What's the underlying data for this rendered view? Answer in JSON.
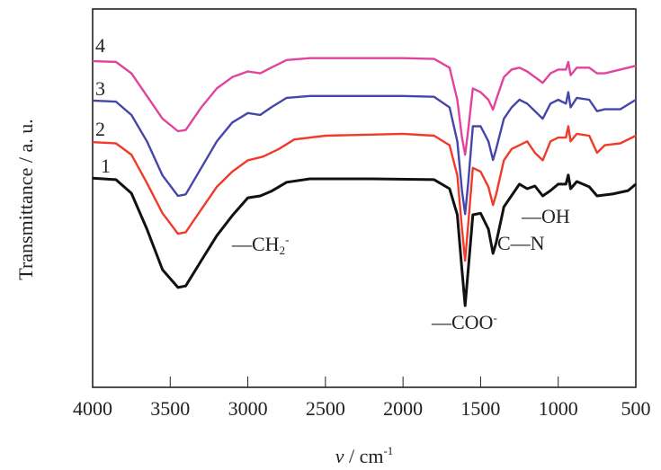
{
  "chart_data": {
    "type": "line",
    "title": "",
    "xlabel": "v / cm-1",
    "xlabel_parts": {
      "var": "v",
      "unit": "/ cm",
      "sup": "-1"
    },
    "ylabel": "Transmittance / a. u.",
    "xlim": [
      4000,
      500
    ],
    "ylim": [
      0,
      100
    ],
    "xticks": [
      4000,
      3500,
      3000,
      2500,
      2000,
      1500,
      1000,
      500
    ],
    "xtick_labels": [
      "4000",
      "3500",
      "3000",
      "2500",
      "2000",
      "1500",
      "1000",
      "500"
    ],
    "grid": false,
    "series": [
      {
        "name": "1",
        "color": "#111111",
        "points": [
          [
            4000,
            55.3
          ],
          [
            3850,
            54.9
          ],
          [
            3750,
            51.3
          ],
          [
            3650,
            41.8
          ],
          [
            3550,
            31.1
          ],
          [
            3450,
            26.4
          ],
          [
            3400,
            26.8
          ],
          [
            3300,
            33.5
          ],
          [
            3200,
            40.1
          ],
          [
            3100,
            45.4
          ],
          [
            3000,
            50.1
          ],
          [
            2920,
            50.6
          ],
          [
            2850,
            51.8
          ],
          [
            2750,
            54.2
          ],
          [
            2600,
            55.1
          ],
          [
            2200,
            55.1
          ],
          [
            1800,
            54.9
          ],
          [
            1700,
            52.5
          ],
          [
            1650,
            45.6
          ],
          [
            1620,
            31
          ],
          [
            1600,
            21.6
          ],
          [
            1580,
            31
          ],
          [
            1550,
            45.6
          ],
          [
            1500,
            46
          ],
          [
            1450,
            41.8
          ],
          [
            1420,
            35.4
          ],
          [
            1400,
            38.2
          ],
          [
            1350,
            47.7
          ],
          [
            1250,
            53.7
          ],
          [
            1200,
            52.5
          ],
          [
            1150,
            53.2
          ],
          [
            1100,
            50.6
          ],
          [
            1050,
            52
          ],
          [
            1000,
            53.7
          ],
          [
            950,
            53.7
          ],
          [
            935,
            56.1
          ],
          [
            920,
            52.5
          ],
          [
            880,
            54.4
          ],
          [
            800,
            53
          ],
          [
            750,
            50.6
          ],
          [
            650,
            51.1
          ],
          [
            550,
            52
          ],
          [
            500,
            53.7
          ]
        ]
      },
      {
        "name": "2",
        "color": "#f03a2a",
        "points": [
          [
            4000,
            64.8
          ],
          [
            3850,
            64.5
          ],
          [
            3750,
            61.5
          ],
          [
            3650,
            54
          ],
          [
            3550,
            46
          ],
          [
            3450,
            40.6
          ],
          [
            3400,
            41
          ],
          [
            3300,
            47
          ],
          [
            3200,
            53
          ],
          [
            3100,
            57
          ],
          [
            3000,
            60
          ],
          [
            2900,
            61
          ],
          [
            2800,
            63
          ],
          [
            2700,
            65.5
          ],
          [
            2500,
            66.5
          ],
          [
            2000,
            67
          ],
          [
            1800,
            66.5
          ],
          [
            1700,
            64
          ],
          [
            1650,
            56
          ],
          [
            1620,
            42
          ],
          [
            1600,
            33.5
          ],
          [
            1580,
            43
          ],
          [
            1550,
            58
          ],
          [
            1500,
            57
          ],
          [
            1450,
            53
          ],
          [
            1420,
            48.2
          ],
          [
            1400,
            51
          ],
          [
            1350,
            60
          ],
          [
            1300,
            63
          ],
          [
            1250,
            64
          ],
          [
            1200,
            65
          ],
          [
            1150,
            62
          ],
          [
            1100,
            60
          ],
          [
            1050,
            65
          ],
          [
            1000,
            66
          ],
          [
            950,
            66
          ],
          [
            935,
            69
          ],
          [
            920,
            65
          ],
          [
            880,
            67
          ],
          [
            800,
            66.5
          ],
          [
            750,
            62
          ],
          [
            700,
            64
          ],
          [
            600,
            64.5
          ],
          [
            500,
            66.5
          ]
        ]
      },
      {
        "name": "3",
        "color": "#4646aa",
        "points": [
          [
            4000,
            75.8
          ],
          [
            3850,
            75.5
          ],
          [
            3750,
            72
          ],
          [
            3650,
            65
          ],
          [
            3550,
            56
          ],
          [
            3450,
            50.6
          ],
          [
            3400,
            51
          ],
          [
            3300,
            58
          ],
          [
            3200,
            65
          ],
          [
            3100,
            70
          ],
          [
            3000,
            72.5
          ],
          [
            2920,
            72
          ],
          [
            2850,
            74
          ],
          [
            2750,
            76.5
          ],
          [
            2600,
            77
          ],
          [
            2000,
            77
          ],
          [
            1800,
            76.8
          ],
          [
            1700,
            74
          ],
          [
            1650,
            65
          ],
          [
            1620,
            52
          ],
          [
            1600,
            45.8
          ],
          [
            1580,
            54
          ],
          [
            1550,
            69
          ],
          [
            1500,
            69
          ],
          [
            1450,
            65
          ],
          [
            1420,
            60.1
          ],
          [
            1400,
            63
          ],
          [
            1350,
            71
          ],
          [
            1300,
            74
          ],
          [
            1250,
            76
          ],
          [
            1200,
            75
          ],
          [
            1100,
            71
          ],
          [
            1050,
            75
          ],
          [
            1000,
            76
          ],
          [
            950,
            75
          ],
          [
            935,
            78
          ],
          [
            920,
            74
          ],
          [
            880,
            76.5
          ],
          [
            800,
            76
          ],
          [
            750,
            73
          ],
          [
            700,
            73.5
          ],
          [
            600,
            73.5
          ],
          [
            500,
            76
          ]
        ]
      },
      {
        "name": "4",
        "color": "#e0449c",
        "points": [
          [
            4000,
            86.2
          ],
          [
            3850,
            86
          ],
          [
            3750,
            83
          ],
          [
            3650,
            77
          ],
          [
            3550,
            71
          ],
          [
            3450,
            67.7
          ],
          [
            3400,
            68
          ],
          [
            3300,
            74
          ],
          [
            3200,
            79
          ],
          [
            3100,
            82
          ],
          [
            3000,
            83.5
          ],
          [
            2920,
            83
          ],
          [
            2850,
            84.5
          ],
          [
            2750,
            86.5
          ],
          [
            2600,
            87
          ],
          [
            2000,
            87
          ],
          [
            1800,
            86.8
          ],
          [
            1700,
            84.5
          ],
          [
            1650,
            76
          ],
          [
            1620,
            66
          ],
          [
            1600,
            61.5
          ],
          [
            1580,
            68
          ],
          [
            1550,
            79
          ],
          [
            1500,
            78
          ],
          [
            1450,
            76
          ],
          [
            1420,
            73.4
          ],
          [
            1400,
            76
          ],
          [
            1350,
            82
          ],
          [
            1300,
            84
          ],
          [
            1250,
            84.5
          ],
          [
            1200,
            83.5
          ],
          [
            1100,
            80.5
          ],
          [
            1050,
            83
          ],
          [
            1000,
            84
          ],
          [
            950,
            84
          ],
          [
            935,
            86
          ],
          [
            920,
            82.5
          ],
          [
            880,
            84.5
          ],
          [
            800,
            84.5
          ],
          [
            750,
            83
          ],
          [
            700,
            83
          ],
          [
            600,
            84
          ],
          [
            500,
            85
          ]
        ]
      }
    ],
    "curve_labels": [
      "1",
      "2",
      "3",
      "4"
    ],
    "annotations": [
      {
        "id": "ch2",
        "text": "—CH",
        "sub": "2",
        "sup": "-"
      },
      {
        "id": "coo",
        "text": "—COO",
        "sub": "",
        "sup": "-"
      },
      {
        "id": "cn",
        "text": "C—N",
        "sub": "",
        "sup": ""
      },
      {
        "id": "oh",
        "text": "—OH",
        "sub": "",
        "sup": ""
      }
    ]
  }
}
